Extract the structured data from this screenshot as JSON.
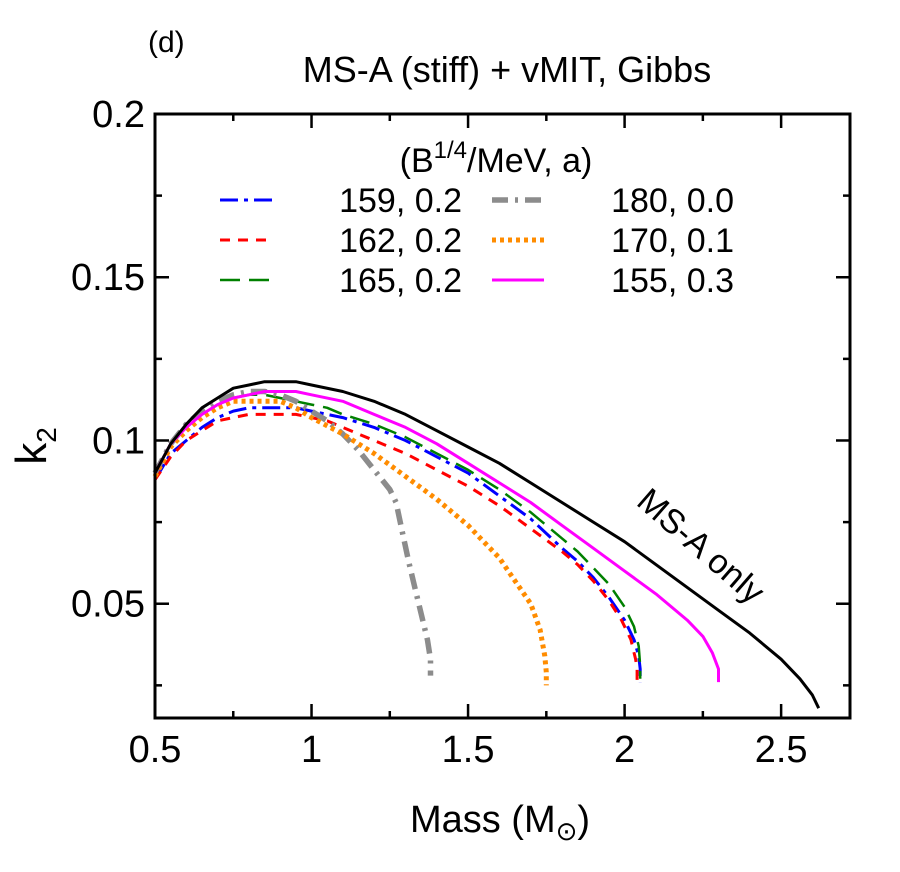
{
  "chart_data": {
    "type": "line",
    "panel_label": "(d)",
    "title": "MS-A (stiff) + vMIT, Gibbs",
    "xlabel": {
      "main": "Mass (M",
      "sub": "⊙",
      "close": ")"
    },
    "ylabel": {
      "main": "k",
      "sub": "2"
    },
    "xlim": [
      0.5,
      2.72
    ],
    "ylim": [
      0.015,
      0.2
    ],
    "xticks": [
      0.5,
      1,
      1.5,
      2,
      2.5
    ],
    "xtick_labels": [
      "0.5",
      "1",
      "1.5",
      "2",
      "2.5"
    ],
    "xminor": [
      0.75,
      1.25,
      1.75,
      2.25
    ],
    "yticks": [
      0.05,
      0.1,
      0.15,
      0.2
    ],
    "ytick_labels": [
      "0.05",
      "0.1",
      "0.15",
      "0.2"
    ],
    "yminor": [
      0.025,
      0.075,
      0.125,
      0.175
    ],
    "grid": false,
    "legend": {
      "placement": "top",
      "title": {
        "pre": "(B",
        "sup": "1/4",
        "post": "/MeV, a)"
      }
    },
    "annotation": {
      "text": "MS-A only",
      "x": 2.22,
      "y": 0.065,
      "angle_deg": 41
    },
    "series": [
      {
        "name": "159, 0.2",
        "color": "#0000ff",
        "dash": "18 6 4 6",
        "width": 3,
        "legend_col": 0,
        "legend_row": 0,
        "points": [
          [
            0.5,
            0.088
          ],
          [
            0.55,
            0.096
          ],
          [
            0.6,
            0.1
          ],
          [
            0.65,
            0.104
          ],
          [
            0.7,
            0.107
          ],
          [
            0.75,
            0.109
          ],
          [
            0.8,
            0.11
          ],
          [
            0.85,
            0.11
          ],
          [
            0.9,
            0.11
          ],
          [
            0.95,
            0.11
          ],
          [
            1.0,
            0.109
          ],
          [
            1.05,
            0.108
          ],
          [
            1.1,
            0.107
          ],
          [
            1.2,
            0.104
          ],
          [
            1.3,
            0.1
          ],
          [
            1.4,
            0.095
          ],
          [
            1.5,
            0.09
          ],
          [
            1.6,
            0.083
          ],
          [
            1.7,
            0.076
          ],
          [
            1.8,
            0.067
          ],
          [
            1.85,
            0.063
          ],
          [
            1.9,
            0.058
          ],
          [
            1.95,
            0.052
          ],
          [
            2.0,
            0.045
          ],
          [
            2.03,
            0.039
          ],
          [
            2.045,
            0.034
          ],
          [
            2.05,
            0.03
          ],
          [
            2.05,
            0.026
          ]
        ]
      },
      {
        "name": "162, 0.2",
        "color": "#ff0000",
        "dash": "10 8",
        "width": 3,
        "legend_col": 0,
        "legend_row": 1,
        "points": [
          [
            0.5,
            0.088
          ],
          [
            0.55,
            0.095
          ],
          [
            0.6,
            0.1
          ],
          [
            0.65,
            0.103
          ],
          [
            0.7,
            0.106
          ],
          [
            0.75,
            0.107
          ],
          [
            0.8,
            0.108
          ],
          [
            0.85,
            0.108
          ],
          [
            0.9,
            0.108
          ],
          [
            0.95,
            0.108
          ],
          [
            1.0,
            0.107
          ],
          [
            1.05,
            0.106
          ],
          [
            1.1,
            0.104
          ],
          [
            1.2,
            0.1
          ],
          [
            1.3,
            0.096
          ],
          [
            1.4,
            0.091
          ],
          [
            1.5,
            0.086
          ],
          [
            1.6,
            0.08
          ],
          [
            1.7,
            0.073
          ],
          [
            1.8,
            0.066
          ],
          [
            1.85,
            0.062
          ],
          [
            1.9,
            0.057
          ],
          [
            1.95,
            0.051
          ],
          [
            1.99,
            0.045
          ],
          [
            2.02,
            0.039
          ],
          [
            2.035,
            0.033
          ],
          [
            2.04,
            0.03
          ],
          [
            2.04,
            0.026
          ]
        ]
      },
      {
        "name": "165, 0.2",
        "color": "#008000",
        "dash": "20 9",
        "width": 2.5,
        "legend_col": 0,
        "legend_row": 2,
        "points": [
          [
            0.5,
            0.09
          ],
          [
            0.55,
            0.099
          ],
          [
            0.6,
            0.104
          ],
          [
            0.65,
            0.108
          ],
          [
            0.7,
            0.111
          ],
          [
            0.75,
            0.113
          ],
          [
            0.8,
            0.114
          ],
          [
            0.85,
            0.114
          ],
          [
            0.9,
            0.113
          ],
          [
            0.95,
            0.112
          ],
          [
            1.0,
            0.111
          ],
          [
            1.05,
            0.11
          ],
          [
            1.1,
            0.108
          ],
          [
            1.2,
            0.105
          ],
          [
            1.3,
            0.101
          ],
          [
            1.4,
            0.096
          ],
          [
            1.5,
            0.091
          ],
          [
            1.6,
            0.085
          ],
          [
            1.7,
            0.078
          ],
          [
            1.8,
            0.07
          ],
          [
            1.85,
            0.066
          ],
          [
            1.9,
            0.061
          ],
          [
            1.95,
            0.056
          ],
          [
            2.0,
            0.049
          ],
          [
            2.03,
            0.043
          ],
          [
            2.045,
            0.037
          ],
          [
            2.05,
            0.031
          ],
          [
            2.05,
            0.027
          ]
        ]
      },
      {
        "name": "180, 0.0",
        "color": "#8c8c8c",
        "dash": "16 7 3 7",
        "width": 5.5,
        "legend_col": 1,
        "legend_row": 0,
        "points": [
          [
            0.5,
            0.09
          ],
          [
            0.55,
            0.099
          ],
          [
            0.6,
            0.105
          ],
          [
            0.65,
            0.109
          ],
          [
            0.7,
            0.112
          ],
          [
            0.75,
            0.114
          ],
          [
            0.8,
            0.115
          ],
          [
            0.85,
            0.115
          ],
          [
            0.9,
            0.114
          ],
          [
            0.95,
            0.112
          ],
          [
            1.0,
            0.109
          ],
          [
            1.05,
            0.106
          ],
          [
            1.1,
            0.102
          ],
          [
            1.15,
            0.097
          ],
          [
            1.2,
            0.091
          ],
          [
            1.25,
            0.085
          ],
          [
            1.27,
            0.081
          ],
          [
            1.29,
            0.072
          ],
          [
            1.31,
            0.063
          ],
          [
            1.33,
            0.055
          ],
          [
            1.35,
            0.047
          ],
          [
            1.37,
            0.039
          ],
          [
            1.38,
            0.033
          ],
          [
            1.38,
            0.028
          ]
        ]
      },
      {
        "name": "170, 0.1",
        "color": "#ff8c00",
        "dash": "4 4",
        "width": 5,
        "legend_col": 1,
        "legend_row": 1,
        "points": [
          [
            0.5,
            0.089
          ],
          [
            0.55,
            0.098
          ],
          [
            0.6,
            0.103
          ],
          [
            0.65,
            0.107
          ],
          [
            0.7,
            0.11
          ],
          [
            0.75,
            0.112
          ],
          [
            0.8,
            0.112
          ],
          [
            0.85,
            0.112
          ],
          [
            0.9,
            0.112
          ],
          [
            0.95,
            0.11
          ],
          [
            1.0,
            0.107
          ],
          [
            1.1,
            0.102
          ],
          [
            1.2,
            0.096
          ],
          [
            1.3,
            0.089
          ],
          [
            1.4,
            0.082
          ],
          [
            1.5,
            0.074
          ],
          [
            1.55,
            0.069
          ],
          [
            1.6,
            0.064
          ],
          [
            1.65,
            0.057
          ],
          [
            1.7,
            0.05
          ],
          [
            1.73,
            0.042
          ],
          [
            1.745,
            0.034
          ],
          [
            1.75,
            0.029
          ],
          [
            1.75,
            0.025
          ]
        ]
      },
      {
        "name": "155, 0.3",
        "color": "#ff00ff",
        "dash": "",
        "width": 3,
        "legend_col": 1,
        "legend_row": 2,
        "points": [
          [
            0.5,
            0.09
          ],
          [
            0.55,
            0.099
          ],
          [
            0.6,
            0.104
          ],
          [
            0.65,
            0.108
          ],
          [
            0.7,
            0.111
          ],
          [
            0.75,
            0.113
          ],
          [
            0.8,
            0.114
          ],
          [
            0.85,
            0.115
          ],
          [
            0.9,
            0.115
          ],
          [
            0.95,
            0.115
          ],
          [
            1.0,
            0.114
          ],
          [
            1.1,
            0.112
          ],
          [
            1.2,
            0.108
          ],
          [
            1.3,
            0.104
          ],
          [
            1.4,
            0.099
          ],
          [
            1.5,
            0.093
          ],
          [
            1.6,
            0.087
          ],
          [
            1.7,
            0.081
          ],
          [
            1.8,
            0.074
          ],
          [
            1.9,
            0.067
          ],
          [
            2.0,
            0.06
          ],
          [
            2.1,
            0.053
          ],
          [
            2.2,
            0.045
          ],
          [
            2.25,
            0.04
          ],
          [
            2.28,
            0.035
          ],
          [
            2.3,
            0.03
          ],
          [
            2.3,
            0.026
          ]
        ]
      },
      {
        "name": "MS-A only",
        "color": "#000000",
        "dash": "",
        "width": 3,
        "legend_col": null,
        "legend_row": null,
        "points": [
          [
            0.5,
            0.09
          ],
          [
            0.55,
            0.099
          ],
          [
            0.6,
            0.105
          ],
          [
            0.65,
            0.11
          ],
          [
            0.7,
            0.113
          ],
          [
            0.75,
            0.116
          ],
          [
            0.8,
            0.117
          ],
          [
            0.85,
            0.118
          ],
          [
            0.9,
            0.118
          ],
          [
            0.95,
            0.118
          ],
          [
            1.0,
            0.117
          ],
          [
            1.1,
            0.115
          ],
          [
            1.2,
            0.112
          ],
          [
            1.3,
            0.108
          ],
          [
            1.4,
            0.103
          ],
          [
            1.5,
            0.098
          ],
          [
            1.6,
            0.093
          ],
          [
            1.7,
            0.087
          ],
          [
            1.8,
            0.081
          ],
          [
            1.9,
            0.075
          ],
          [
            2.0,
            0.069
          ],
          [
            2.1,
            0.062
          ],
          [
            2.2,
            0.055
          ],
          [
            2.3,
            0.048
          ],
          [
            2.4,
            0.041
          ],
          [
            2.5,
            0.033
          ],
          [
            2.56,
            0.027
          ],
          [
            2.6,
            0.022
          ],
          [
            2.62,
            0.018
          ]
        ]
      }
    ]
  }
}
